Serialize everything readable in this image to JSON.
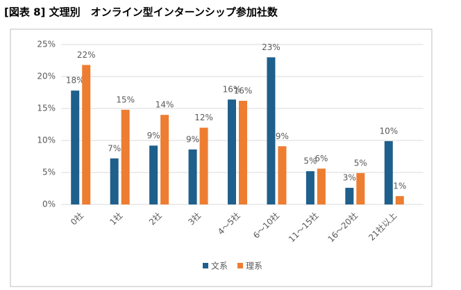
{
  "chart_data": {
    "type": "bar",
    "title": "[図表 8] 文理別　オンライン型インターンシップ参加社数",
    "categories": [
      "0社",
      "1社",
      "2社",
      "3社",
      "4～5社",
      "6～10社",
      "11～15社",
      "16～20社",
      "21社以上"
    ],
    "series": [
      {
        "name": "文系",
        "color": "#1f5f8b",
        "values": [
          17.8,
          7.2,
          9.2,
          8.6,
          16.4,
          23.0,
          5.2,
          2.6,
          9.9
        ],
        "value_labels": [
          "18%",
          "7%",
          "9%",
          "9%",
          "16%",
          "23%",
          "5%",
          "3%",
          "10%"
        ]
      },
      {
        "name": "理系",
        "color": "#ed7d31",
        "values": [
          21.8,
          14.8,
          14.0,
          12.0,
          16.2,
          9.1,
          5.6,
          4.9,
          1.3
        ],
        "value_labels": [
          "22%",
          "15%",
          "14%",
          "12%",
          "16%",
          "9%",
          "6%",
          "5%",
          "1%"
        ]
      }
    ],
    "ylim": [
      0,
      25
    ],
    "yticks": [
      {
        "value": 0,
        "label": "0%"
      },
      {
        "value": 5,
        "label": "5%"
      },
      {
        "value": 10,
        "label": "10%"
      },
      {
        "value": 15,
        "label": "15%"
      },
      {
        "value": 20,
        "label": "20%"
      },
      {
        "value": 25,
        "label": "25%"
      }
    ],
    "grid": true,
    "legend": "bottom"
  }
}
